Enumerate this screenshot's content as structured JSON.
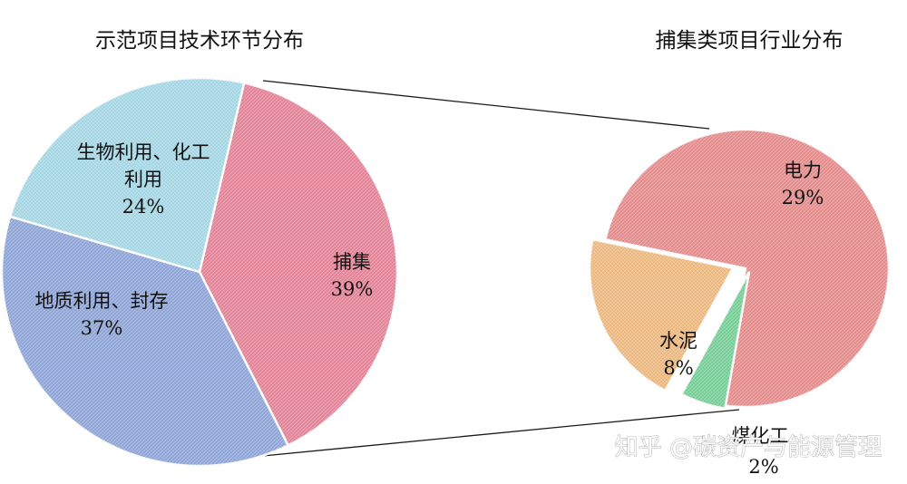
{
  "chart_data": [
    {
      "type": "pie",
      "title": "示范项目技术环节分布",
      "slices": [
        {
          "label": "捕集",
          "value": 39,
          "display": "39%",
          "color": "#e9869b"
        },
        {
          "label": "地质利用、封存",
          "value": 37,
          "display": "37%",
          "color": "#92a9dd"
        },
        {
          "label": "生物利用、化工利用",
          "value": 24,
          "display": "24%",
          "color": "#a9dcea"
        }
      ]
    },
    {
      "type": "pie",
      "title": "捕集类项目行业分布",
      "slices": [
        {
          "label": "电力",
          "value": 29,
          "display": "29%",
          "color": "#eb8f8f"
        },
        {
          "label": "煤化工",
          "value": 2,
          "display": "2%",
          "color": "#79d39a"
        },
        {
          "label": "水泥",
          "value": 8,
          "display": "8%",
          "color": "#f2bd82"
        }
      ]
    }
  ],
  "watermark": "知乎 @碳资产与能源管理"
}
